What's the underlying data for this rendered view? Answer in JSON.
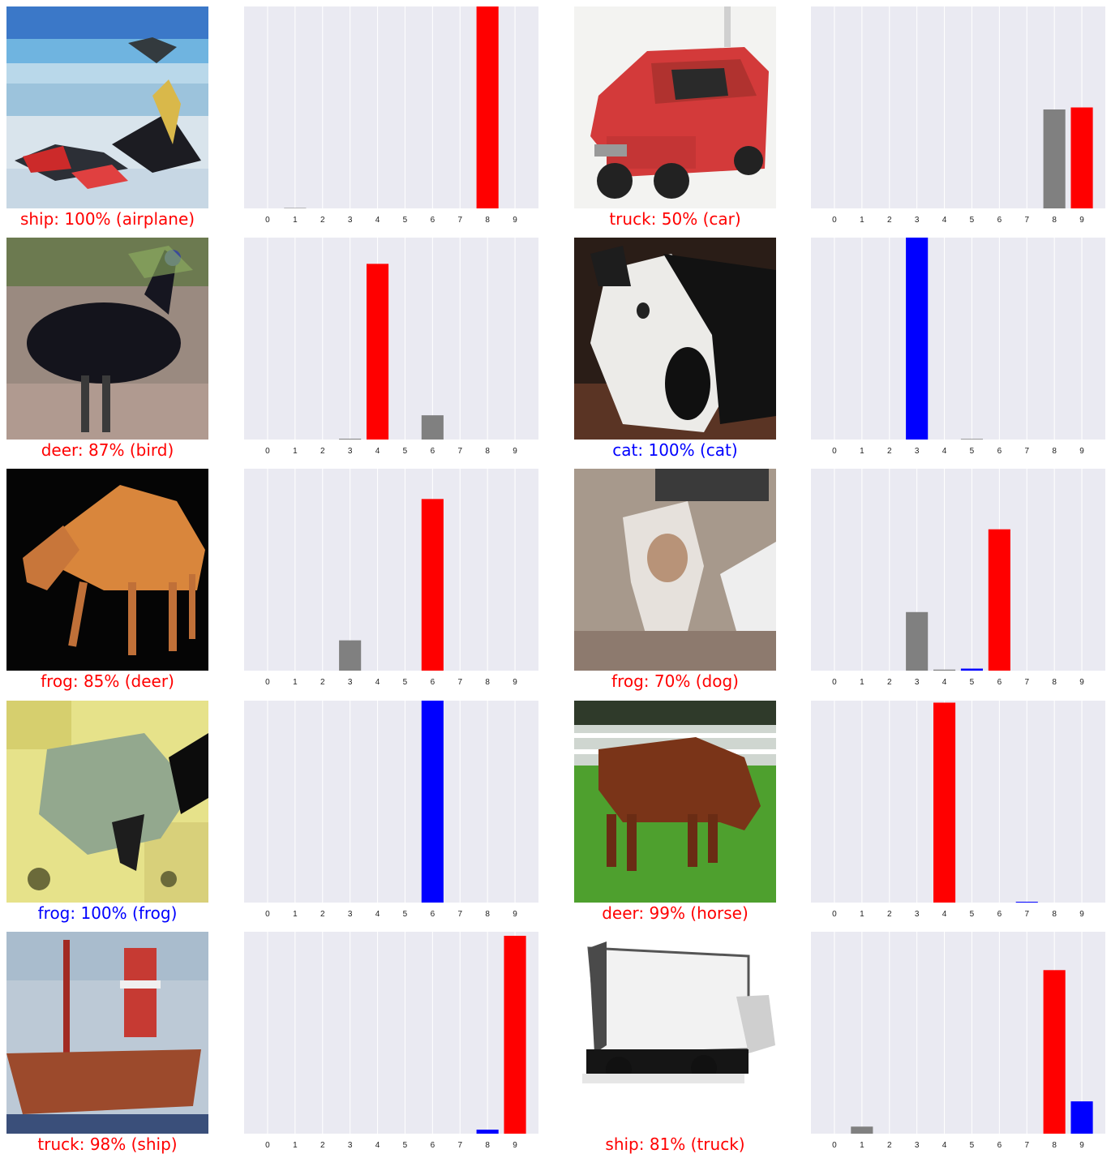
{
  "panels": [
    {
      "predicted": "ship",
      "confidence": "100%",
      "true_label": "airplane",
      "caption": "ship: 100% (airplane)",
      "correct": false,
      "image": "airplane-photo"
    },
    {
      "predicted": "truck",
      "confidence": "50%",
      "true_label": "car",
      "caption": "truck: 50% (car)",
      "correct": false,
      "image": "car-photo"
    },
    {
      "predicted": "deer",
      "confidence": "87%",
      "true_label": "bird",
      "caption": "deer: 87% (bird)",
      "correct": false,
      "image": "bird-photo"
    },
    {
      "predicted": "cat",
      "confidence": "100%",
      "true_label": "cat",
      "caption": "cat: 100% (cat)",
      "correct": true,
      "image": "cat-photo"
    },
    {
      "predicted": "frog",
      "confidence": "85%",
      "true_label": "deer",
      "caption": "frog: 85% (deer)",
      "correct": false,
      "image": "deer-photo"
    },
    {
      "predicted": "frog",
      "confidence": "70%",
      "true_label": "dog",
      "caption": "frog: 70% (dog)",
      "correct": false,
      "image": "dog-photo"
    },
    {
      "predicted": "frog",
      "confidence": "100%",
      "true_label": "frog",
      "caption": "frog: 100% (frog)",
      "correct": true,
      "image": "frog-photo"
    },
    {
      "predicted": "deer",
      "confidence": "99%",
      "true_label": "horse",
      "caption": "deer: 99% (horse)",
      "correct": false,
      "image": "horse-photo"
    },
    {
      "predicted": "truck",
      "confidence": "98%",
      "true_label": "ship",
      "caption": "truck: 98% (ship)",
      "correct": false,
      "image": "ship-photo"
    },
    {
      "predicted": "ship",
      "confidence": "81%",
      "true_label": "truck",
      "caption": "ship: 81% (truck)",
      "correct": false,
      "image": "truck-photo"
    }
  ],
  "colors": {
    "wrong": "#ff0000",
    "correct": "#0000ff",
    "other": "#808080",
    "plot_bg": "#eaeaf2",
    "grid": "#ffffff"
  },
  "chart_data": [
    {
      "type": "bar",
      "categories": [
        "0",
        "1",
        "2",
        "3",
        "4",
        "5",
        "6",
        "7",
        "8",
        "9"
      ],
      "values": [
        0.0,
        0.002,
        0.0,
        0.0,
        0.0,
        0.0,
        0.0,
        0.0,
        1.0,
        0.0
      ],
      "predicted_index": 8,
      "true_index": 0,
      "ylim": [
        0,
        1
      ],
      "grid": true
    },
    {
      "type": "bar",
      "categories": [
        "0",
        "1",
        "2",
        "3",
        "4",
        "5",
        "6",
        "7",
        "8",
        "9"
      ],
      "values": [
        0.0,
        0.0,
        0.0,
        0.0,
        0.0,
        0.0,
        0.0,
        0.0,
        0.49,
        0.5
      ],
      "predicted_index": 9,
      "true_index": 1,
      "ylim": [
        0,
        1
      ],
      "grid": true
    },
    {
      "type": "bar",
      "categories": [
        "0",
        "1",
        "2",
        "3",
        "4",
        "5",
        "6",
        "7",
        "8",
        "9"
      ],
      "values": [
        0.0,
        0.0,
        0.0,
        0.004,
        0.87,
        0.0,
        0.12,
        0.0,
        0.0,
        0.0
      ],
      "predicted_index": 4,
      "true_index": 2,
      "ylim": [
        0,
        1
      ],
      "grid": true
    },
    {
      "type": "bar",
      "categories": [
        "0",
        "1",
        "2",
        "3",
        "4",
        "5",
        "6",
        "7",
        "8",
        "9"
      ],
      "values": [
        0.0,
        0.0,
        0.0,
        1.0,
        0.0,
        0.003,
        0.0,
        0.0,
        0.0,
        0.0
      ],
      "predicted_index": 3,
      "true_index": 3,
      "ylim": [
        0,
        1
      ],
      "grid": true
    },
    {
      "type": "bar",
      "categories": [
        "0",
        "1",
        "2",
        "3",
        "4",
        "5",
        "6",
        "7",
        "8",
        "9"
      ],
      "values": [
        0.0,
        0.0,
        0.0,
        0.15,
        0.0,
        0.0,
        0.85,
        0.0,
        0.0,
        0.0
      ],
      "predicted_index": 6,
      "true_index": 4,
      "ylim": [
        0,
        1
      ],
      "grid": true
    },
    {
      "type": "bar",
      "categories": [
        "0",
        "1",
        "2",
        "3",
        "4",
        "5",
        "6",
        "7",
        "8",
        "9"
      ],
      "values": [
        0.0,
        0.0,
        0.0,
        0.29,
        0.005,
        0.01,
        0.7,
        0.0,
        0.0,
        0.0
      ],
      "predicted_index": 6,
      "true_index": 5,
      "ylim": [
        0,
        1
      ],
      "grid": true
    },
    {
      "type": "bar",
      "categories": [
        "0",
        "1",
        "2",
        "3",
        "4",
        "5",
        "6",
        "7",
        "8",
        "9"
      ],
      "values": [
        0.0,
        0.0,
        0.0,
        0.0,
        0.0,
        0.0,
        1.0,
        0.0,
        0.0,
        0.0
      ],
      "predicted_index": 6,
      "true_index": 6,
      "ylim": [
        0,
        1
      ],
      "grid": true
    },
    {
      "type": "bar",
      "categories": [
        "0",
        "1",
        "2",
        "3",
        "4",
        "5",
        "6",
        "7",
        "8",
        "9"
      ],
      "values": [
        0.0,
        0.0,
        0.0,
        0.0,
        0.99,
        0.0,
        0.0,
        0.004,
        0.0,
        0.0
      ],
      "predicted_index": 4,
      "true_index": 7,
      "ylim": [
        0,
        1
      ],
      "grid": true
    },
    {
      "type": "bar",
      "categories": [
        "0",
        "1",
        "2",
        "3",
        "4",
        "5",
        "6",
        "7",
        "8",
        "9"
      ],
      "values": [
        0.0,
        0.0,
        0.0,
        0.0,
        0.0,
        0.0,
        0.0,
        0.0,
        0.02,
        0.98
      ],
      "predicted_index": 9,
      "true_index": 8,
      "ylim": [
        0,
        1
      ],
      "grid": true
    },
    {
      "type": "bar",
      "categories": [
        "0",
        "1",
        "2",
        "3",
        "4",
        "5",
        "6",
        "7",
        "8",
        "9"
      ],
      "values": [
        0.0,
        0.035,
        0.0,
        0.0,
        0.0,
        0.0,
        0.0,
        0.0,
        0.81,
        0.16
      ],
      "predicted_index": 8,
      "true_index": 9,
      "ylim": [
        0,
        1
      ],
      "grid": true
    }
  ]
}
